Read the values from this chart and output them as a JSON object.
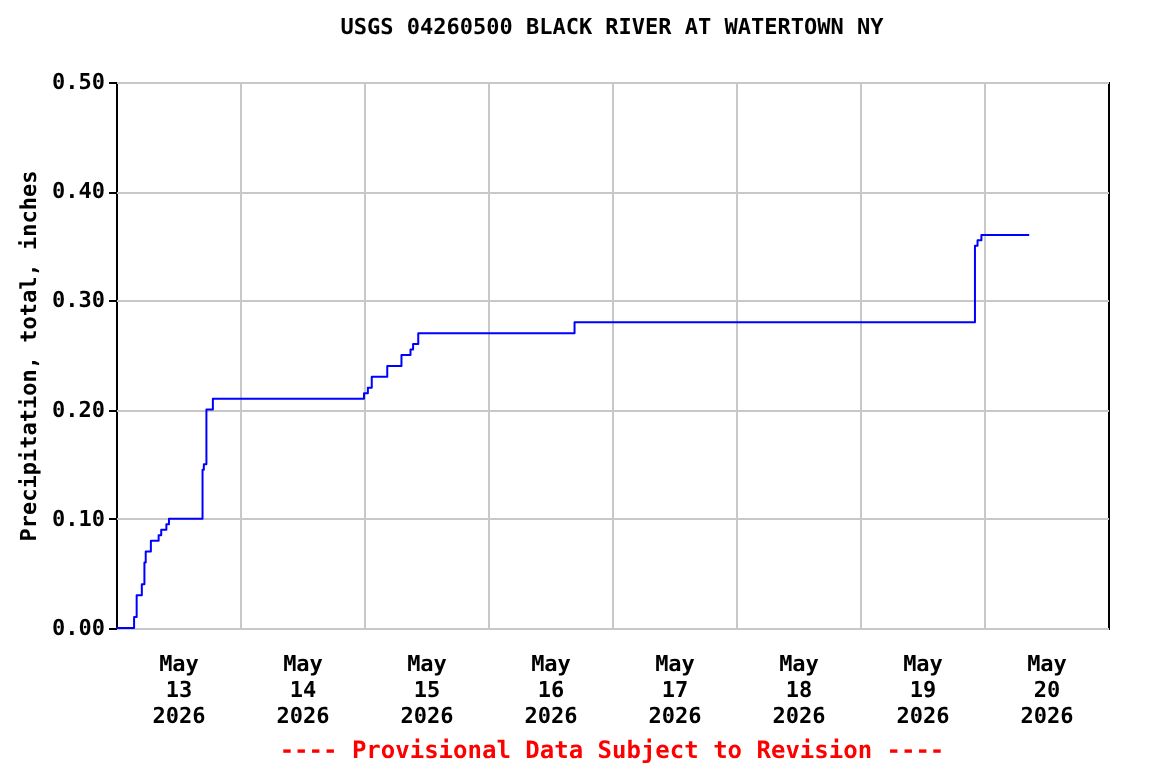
{
  "chart_data": {
    "type": "step",
    "title": "USGS 04260500 BLACK RIVER AT WATERTOWN NY",
    "ylabel": "Precipitation, total, inches",
    "annotations": [
      "---- Provisional Data Subject to Revision ----"
    ],
    "x": [
      "2026-05-13T00:00",
      "2026-05-13T03:30",
      "2026-05-13T04:00",
      "2026-05-13T05:00",
      "2026-05-13T05:30",
      "2026-05-13T05:45",
      "2026-05-13T06:45",
      "2026-05-13T08:15",
      "2026-05-13T08:45",
      "2026-05-13T09:45",
      "2026-05-13T10:15",
      "2026-05-13T16:45",
      "2026-05-13T17:00",
      "2026-05-13T17:30",
      "2026-05-13T18:45",
      "2026-05-15T00:00",
      "2026-05-15T00:45",
      "2026-05-15T01:30",
      "2026-05-15T04:30",
      "2026-05-15T07:15",
      "2026-05-15T09:00",
      "2026-05-15T09:30",
      "2026-05-15T10:30",
      "2026-05-16T16:45",
      "2026-05-19T22:15",
      "2026-05-19T22:45",
      "2026-05-19T23:30",
      "2026-05-20T08:45"
    ],
    "series": [
      {
        "color": "#0000ff",
        "values": [
          0,
          0.01,
          0.03,
          0.04,
          0.06,
          0.07,
          0.08,
          0.085,
          0.09,
          0.095,
          0.1,
          0.145,
          0.15,
          0.2,
          0.21,
          0.215,
          0.22,
          0.23,
          0.24,
          0.25,
          0.255,
          0.26,
          0.27,
          0.28,
          0.35,
          0.355,
          0.36,
          0.36
        ]
      }
    ],
    "xlim": [
      "2026-05-13T00:00",
      "2026-05-21T00:00"
    ],
    "xticks": [
      {
        "value": "2026-05-13T12:00",
        "label": "May 13 2026"
      },
      {
        "value": "2026-05-14T00:00",
        "label": null
      },
      {
        "value": "2026-05-14T12:00",
        "label": "May 14 2026"
      },
      {
        "value": "2026-05-15T00:00",
        "label": null
      },
      {
        "value": "2026-05-15T12:00",
        "label": "May 15 2026"
      },
      {
        "value": "2026-05-16T00:00",
        "label": null
      },
      {
        "value": "2026-05-16T12:00",
        "label": "May 16 2026"
      },
      {
        "value": "2026-05-17T00:00",
        "label": null
      },
      {
        "value": "2026-05-17T12:00",
        "label": "May 17 2026"
      },
      {
        "value": "2026-05-18T00:00",
        "label": null
      },
      {
        "value": "2026-05-18T12:00",
        "label": "May 18 2026"
      },
      {
        "value": "2026-05-19T00:00",
        "label": null
      },
      {
        "value": "2026-05-19T12:00",
        "label": "May 19 2026"
      },
      {
        "value": "2026-05-20T00:00",
        "label": null
      },
      {
        "value": "2026-05-20T12:00",
        "label": "May 20 2026"
      }
    ],
    "ylim": [
      0,
      0.5
    ],
    "yticks": [
      {
        "value": 0,
        "label": "0.00"
      },
      {
        "value": 0.1,
        "label": "0.10"
      },
      {
        "value": 0.2,
        "label": "0.20"
      },
      {
        "value": 0.3,
        "label": "0.30"
      },
      {
        "value": 0.4,
        "label": "0.40"
      },
      {
        "value": 0.5,
        "label": "0.50"
      }
    ],
    "grid": true,
    "marker": "none",
    "line_style": "solid"
  }
}
